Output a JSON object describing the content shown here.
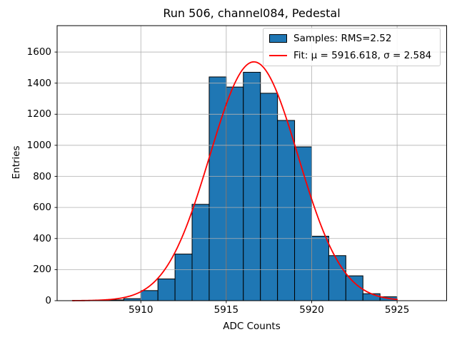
{
  "chart_data": {
    "type": "bar",
    "subtype": "histogram",
    "title": "Run 506, channel084, Pedestal",
    "xlabel": "ADC Counts",
    "ylabel": "Entries",
    "xlim": [
      5905.1,
      5927.9
    ],
    "ylim": [
      0,
      1770
    ],
    "xticks": [
      5910,
      5915,
      5920,
      5925
    ],
    "yticks": [
      0,
      200,
      400,
      600,
      800,
      1000,
      1200,
      1400,
      1600
    ],
    "grid": true,
    "grid_color": "#b0b0b0",
    "bin_start": 5906,
    "bin_width": 1,
    "categories": [
      "5906-5907",
      "5907-5908",
      "5908-5909",
      "5909-5910",
      "5910-5911",
      "5911-5912",
      "5912-5913",
      "5913-5914",
      "5914-5915",
      "5915-5916",
      "5916-5917",
      "5917-5918",
      "5918-5919",
      "5919-5920",
      "5920-5921",
      "5921-5922",
      "5922-5923",
      "5923-5924",
      "5924-5925"
    ],
    "values": [
      1,
      2,
      5,
      13,
      65,
      140,
      300,
      620,
      1440,
      1375,
      1470,
      1335,
      1160,
      990,
      415,
      290,
      160,
      45,
      25
    ],
    "bar_color": "#1f77b4",
    "bar_edge_color": "#000000",
    "fit": {
      "mu": 5916.618,
      "sigma": 2.584,
      "amplitude": 1537,
      "color": "#ff0000",
      "x_range": [
        5906,
        5925
      ]
    },
    "legend": {
      "position": "upper right",
      "entries": [
        {
          "type": "patch",
          "label": "Samples: RMS=2.52",
          "color": "#1f77b4"
        },
        {
          "type": "line",
          "label": "Fit: μ = 5916.618, σ = 2.584",
          "color": "#ff0000"
        }
      ]
    }
  }
}
